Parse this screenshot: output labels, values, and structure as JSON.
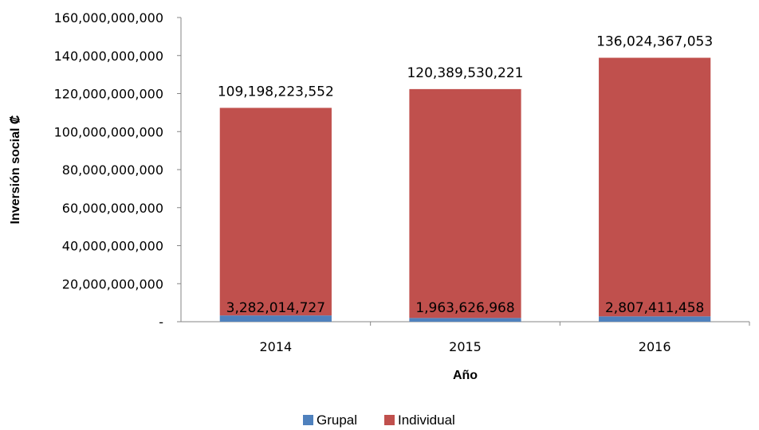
{
  "chart_data": {
    "type": "bar",
    "stacked": true,
    "categories": [
      "2014",
      "2015",
      "2016"
    ],
    "series": [
      {
        "name": "Grupal",
        "values": [
          3282014727,
          1963626968,
          2807411458
        ],
        "color": "#4f81bd",
        "labels": [
          "3,282,014,727",
          "1,963,626,968",
          "2,807,411,458"
        ]
      },
      {
        "name": "Individual",
        "values": [
          109198223552,
          120389530221,
          136024367053
        ],
        "color": "#c0504d",
        "labels": [
          "109,198,223,552",
          "120,389,530,221",
          "136,024,367,053"
        ]
      }
    ],
    "title": "",
    "xlabel": "Año",
    "ylabel": "Inversión social ₡",
    "ylim": [
      0,
      160000000000
    ],
    "yticks": [
      0,
      20000000000,
      40000000000,
      60000000000,
      80000000000,
      100000000000,
      120000000000,
      140000000000,
      160000000000
    ],
    "ytick_labels": [
      "-",
      "20,000,000,000",
      "40,000,000,000",
      "60,000,000,000",
      "80,000,000,000",
      "100,000,000,000",
      "120,000,000,000",
      "140,000,000,000",
      "160,000,000,000"
    ],
    "grid": false,
    "legend": "bottom"
  }
}
